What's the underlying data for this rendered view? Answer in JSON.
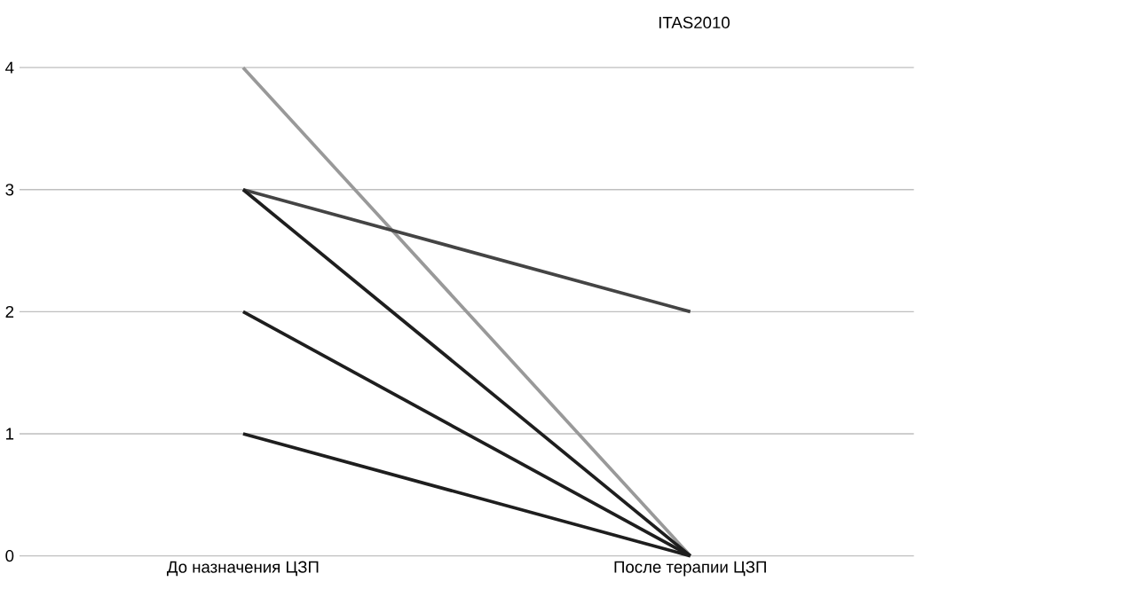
{
  "chart_data": {
    "type": "line",
    "title": "ITAS2010",
    "categories": [
      "До назначения ЦЗП",
      "После терапии ЦЗП"
    ],
    "series": [
      {
        "color": "#999999",
        "values": [
          4,
          0
        ]
      },
      {
        "color": "#444444",
        "values": [
          3,
          2
        ]
      },
      {
        "color": "#1e1e1e",
        "values": [
          3,
          0
        ]
      },
      {
        "color": "#1e1e1e",
        "values": [
          2,
          0
        ]
      },
      {
        "color": "#1e1e1e",
        "values": [
          1,
          0
        ]
      }
    ],
    "ylim": [
      0,
      4
    ],
    "yticks": [
      0,
      1,
      2,
      3,
      4
    ],
    "grid": "y",
    "legend": false,
    "marker": "none",
    "line_style": "solid"
  }
}
